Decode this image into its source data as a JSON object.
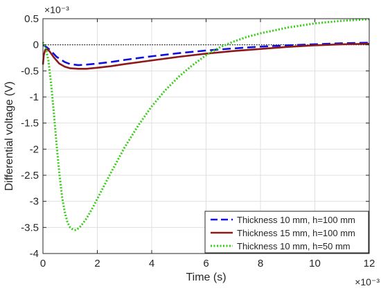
{
  "chart_data": {
    "type": "line",
    "title": "",
    "xlabel": "Time (s)",
    "ylabel": "Differential voltage (V)",
    "x_exponent_label": "×10⁻³",
    "y_exponent_label": "×10⁻³",
    "xlim": [
      0,
      12
    ],
    "ylim": [
      -4,
      0.5
    ],
    "xticks": [
      0,
      2,
      4,
      6,
      8,
      10,
      12
    ],
    "yticks": [
      -4,
      -3.5,
      -3,
      -2.5,
      -2,
      -1.5,
      -1,
      -0.5,
      0,
      0.5
    ],
    "xtick_labels": [
      "0",
      "2",
      "4",
      "6",
      "8",
      "10",
      "12"
    ],
    "ytick_labels": [
      "-4",
      "-3.5",
      "-3",
      "-2.5",
      "-2",
      "-1.5",
      "-1",
      "-0.5",
      "0",
      "0.5"
    ],
    "grid": true,
    "reference_line_y": 0,
    "legend_position": "bottom-right",
    "series": [
      {
        "name": "Thickness 10 mm, h=100 mm",
        "color": "#1010dd",
        "style": "dashed",
        "x": [
          0,
          0.05,
          0.15,
          0.3,
          0.5,
          0.8,
          1.0,
          1.3,
          1.6,
          2.0,
          2.5,
          3.0,
          4.0,
          5.0,
          6.0,
          7.0,
          8.0,
          9.0,
          10.0,
          11.0,
          12.0
        ],
        "y": [
          0.0,
          -0.02,
          -0.05,
          -0.12,
          -0.23,
          -0.33,
          -0.37,
          -0.39,
          -0.38,
          -0.36,
          -0.33,
          -0.29,
          -0.22,
          -0.16,
          -0.11,
          -0.07,
          -0.035,
          -0.01,
          0.01,
          0.03,
          0.04
        ]
      },
      {
        "name": "Thickness 15 mm, h=100 mm",
        "color": "#8b1a1a",
        "style": "solid",
        "x": [
          0,
          0.03,
          0.08,
          0.15,
          0.25,
          0.4,
          0.6,
          0.8,
          1.0,
          1.3,
          1.6,
          2.0,
          2.5,
          3.0,
          4.0,
          5.0,
          6.0,
          7.0,
          8.0,
          9.0,
          10.0,
          11.0,
          12.0
        ],
        "y": [
          -0.38,
          -0.2,
          -0.1,
          -0.08,
          -0.13,
          -0.24,
          -0.36,
          -0.42,
          -0.45,
          -0.46,
          -0.46,
          -0.44,
          -0.41,
          -0.37,
          -0.3,
          -0.23,
          -0.17,
          -0.12,
          -0.08,
          -0.04,
          -0.01,
          0.01,
          0.02
        ]
      },
      {
        "name": "Thickness 10 mm, h=50 mm",
        "color": "#33cc11",
        "style": "dotted",
        "x": [
          0,
          0.1,
          0.2,
          0.3,
          0.4,
          0.5,
          0.6,
          0.7,
          0.8,
          0.9,
          1.0,
          1.1,
          1.2,
          1.3,
          1.4,
          1.5,
          1.6,
          1.8,
          2.0,
          2.2,
          2.5,
          3.0,
          3.5,
          4.0,
          4.5,
          5.0,
          5.5,
          6.0,
          6.5,
          7.0,
          7.5,
          8.0,
          9.0,
          10.0,
          11.0,
          12.0
        ],
        "y": [
          0.05,
          -0.05,
          -0.3,
          -0.75,
          -1.3,
          -1.9,
          -2.45,
          -2.9,
          -3.2,
          -3.4,
          -3.5,
          -3.54,
          -3.55,
          -3.52,
          -3.47,
          -3.4,
          -3.33,
          -3.15,
          -2.95,
          -2.75,
          -2.45,
          -1.97,
          -1.55,
          -1.18,
          -0.87,
          -0.61,
          -0.39,
          -0.2,
          -0.05,
          0.06,
          0.15,
          0.22,
          0.33,
          0.41,
          0.46,
          0.49
        ]
      }
    ]
  }
}
